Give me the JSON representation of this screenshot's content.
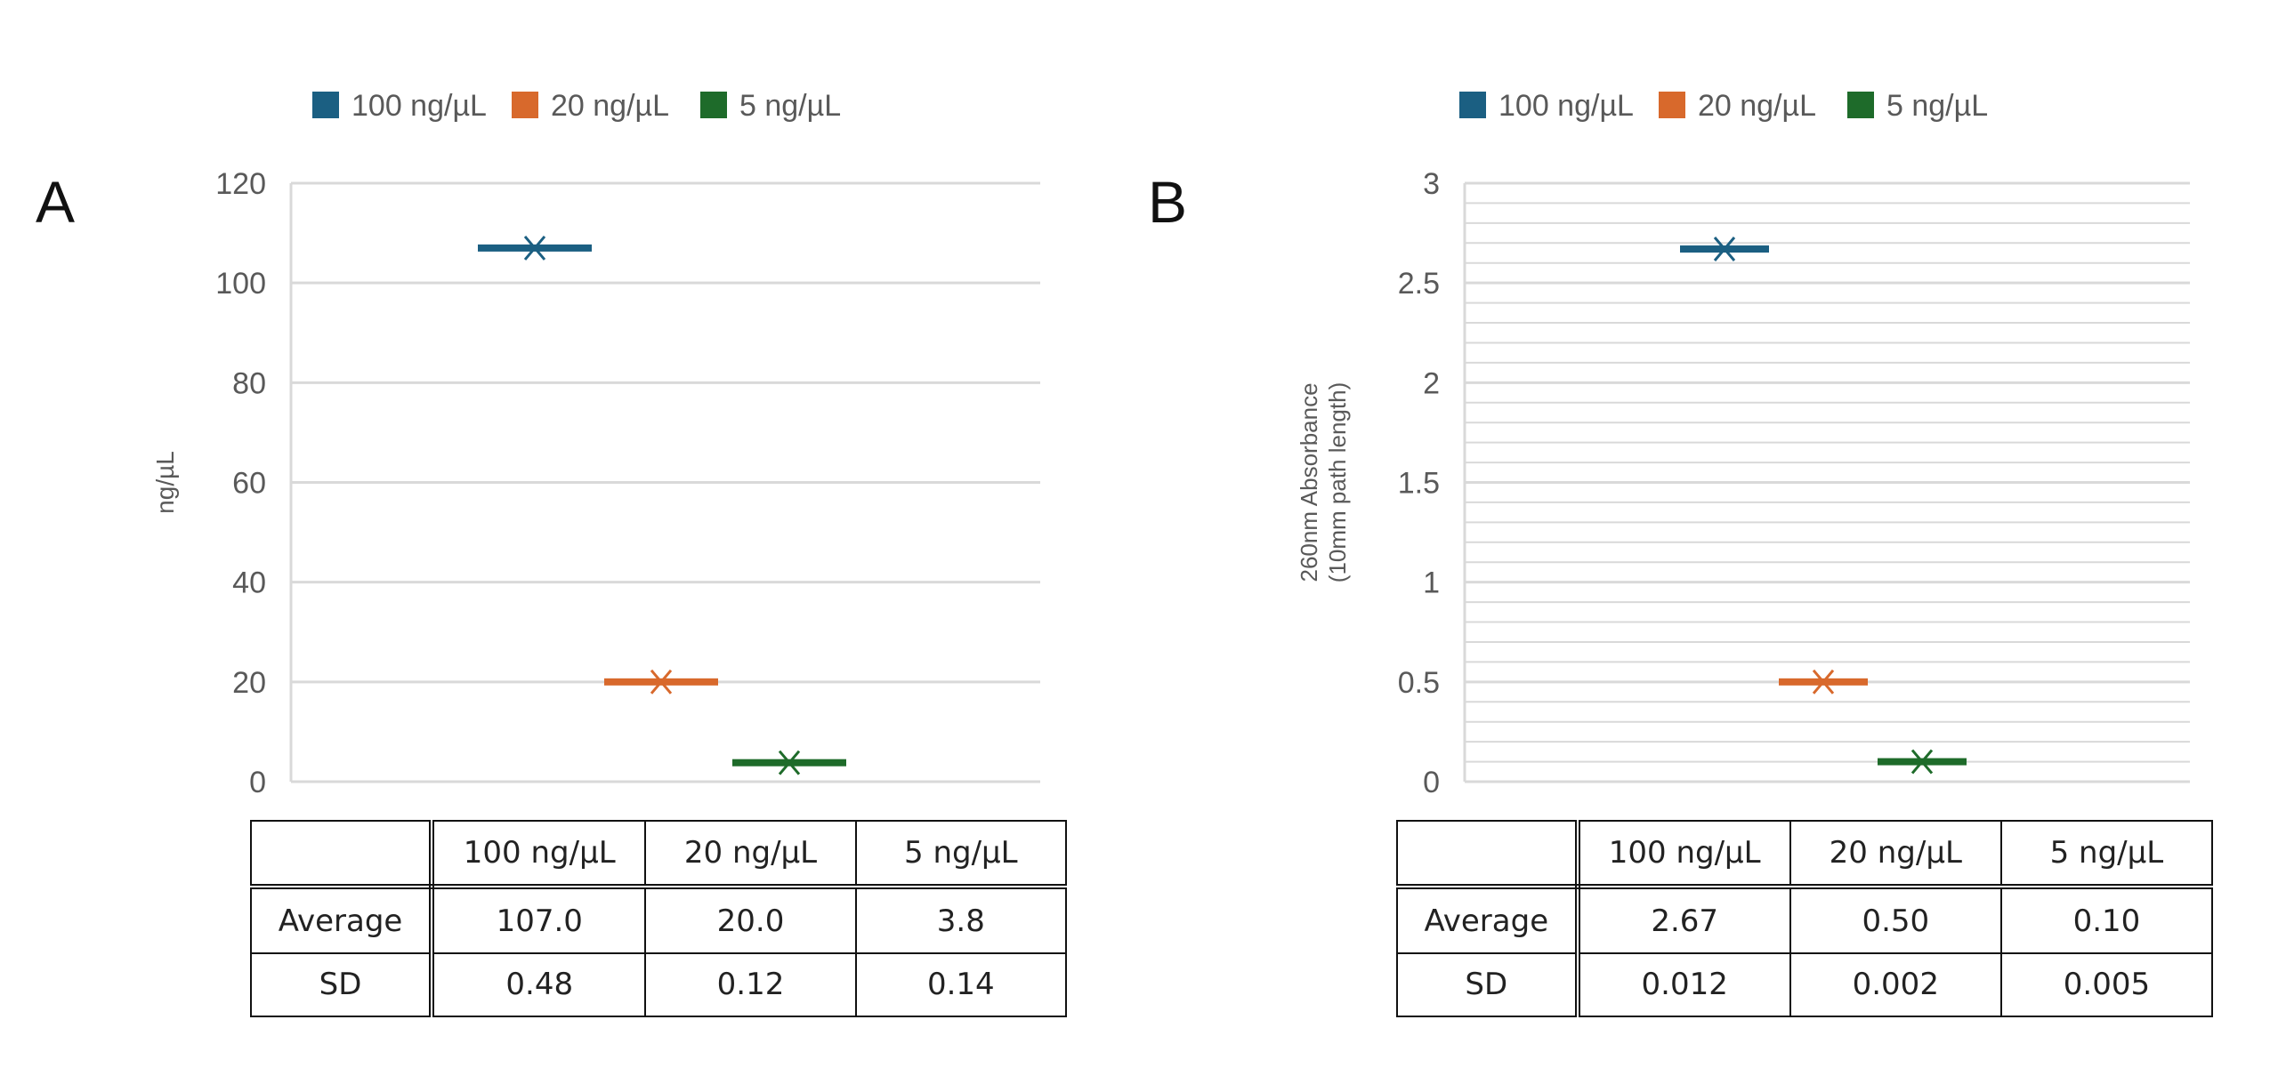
{
  "chart_data": [
    {
      "type": "box",
      "panel_label": "A",
      "ylabel": "ng/µL",
      "ylim": [
        0,
        120
      ],
      "yticks": [
        "0",
        "20",
        "40",
        "60",
        "80",
        "100",
        "120"
      ],
      "ytick_values": [
        0,
        20,
        40,
        60,
        80,
        100,
        120
      ],
      "grid": "major",
      "legend_position": "top",
      "series": [
        {
          "name": "100 ng/µL",
          "mean": 107.0,
          "color": "#1b5f82"
        },
        {
          "name": "20 ng/µL",
          "mean": 20.0,
          "color": "#d8692c"
        },
        {
          "name": "5 ng/µL",
          "mean": 3.8,
          "color": "#1e6b2a"
        }
      ],
      "table": {
        "columns": [
          "",
          "100 ng/µL",
          "20 ng/µL",
          "5 ng/µL"
        ],
        "rows": [
          [
            "Average",
            "107.0",
            "20.0",
            "3.8"
          ],
          [
            "SD",
            "0.48",
            "0.12",
            "0.14"
          ]
        ]
      }
    },
    {
      "type": "box",
      "panel_label": "B",
      "ylabel": "260nm Absorbance",
      "ylabel2": "(10mm path length)",
      "ylim": [
        0,
        3
      ],
      "yticks": [
        "0",
        "0.5",
        "1",
        "1.5",
        "2",
        "2.5",
        "3"
      ],
      "ytick_values": [
        0,
        0.5,
        1,
        1.5,
        2,
        2.5,
        3
      ],
      "minor_grid_step": 0.1,
      "grid": "major+minor",
      "legend_position": "top",
      "series": [
        {
          "name": "100 ng/µL",
          "mean": 2.67,
          "color": "#1b5f82"
        },
        {
          "name": "20 ng/µL",
          "mean": 0.5,
          "color": "#d8692c"
        },
        {
          "name": "5 ng/µL",
          "mean": 0.1,
          "color": "#1e6b2a"
        }
      ],
      "table": {
        "columns": [
          "",
          "100 ng/µL",
          "20 ng/µL",
          "5 ng/µL"
        ],
        "rows": [
          [
            "Average",
            "2.67",
            "0.50",
            "0.10"
          ],
          [
            "SD",
            "0.012",
            "0.002",
            "0.005"
          ]
        ]
      }
    }
  ]
}
